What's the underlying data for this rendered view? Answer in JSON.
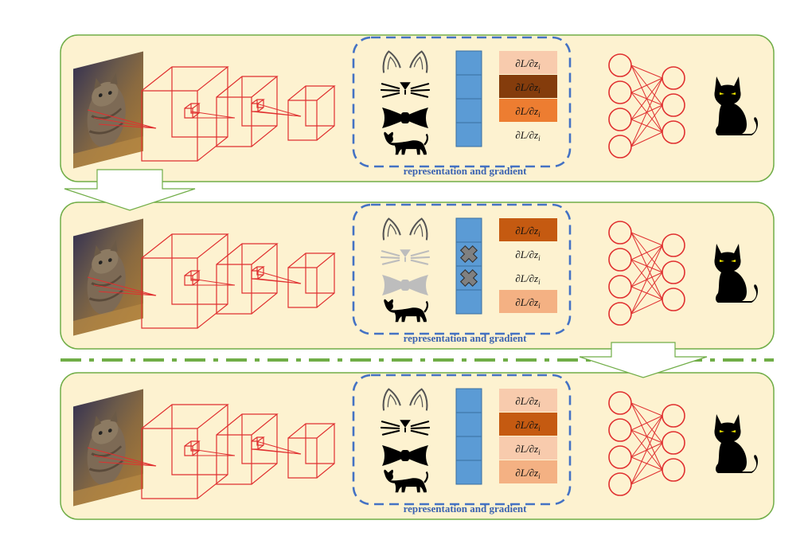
{
  "panels": [
    {
      "id": "panel-top",
      "caption": "representation and gradient",
      "features": [
        "cat-ears",
        "whiskers",
        "bowtie",
        "cat-body"
      ],
      "feature_dimmed": [
        false,
        false,
        false,
        false
      ],
      "feature_dropped": [
        false,
        false,
        false,
        false
      ],
      "gradient_label": "∂L/∂z",
      "gradient_subscript": "i",
      "gradient_colors": [
        "#f8cbad",
        "#843c0c",
        "#ed7d31",
        "#fdf2d0"
      ]
    },
    {
      "id": "panel-middle",
      "caption": "representation and gradient",
      "features": [
        "cat-ears",
        "whiskers",
        "bowtie",
        "cat-body"
      ],
      "feature_dimmed": [
        false,
        true,
        true,
        false
      ],
      "feature_dropped": [
        false,
        true,
        true,
        false
      ],
      "gradient_label": "∂L/∂z",
      "gradient_subscript": "i",
      "gradient_colors": [
        "#c55a11",
        "#fdf2d0",
        "#fdf2d0",
        "#f4b183"
      ]
    },
    {
      "id": "panel-bottom",
      "caption": "representation and gradient",
      "features": [
        "cat-ears",
        "whiskers",
        "bowtie",
        "cat-body"
      ],
      "feature_dimmed": [
        false,
        false,
        false,
        false
      ],
      "feature_dropped": [
        false,
        false,
        false,
        false
      ],
      "gradient_label": "∂L/∂z",
      "gradient_subscript": "i",
      "gradient_colors": [
        "#f8cbad",
        "#c55a11",
        "#f8cbad",
        "#f4b183"
      ]
    }
  ],
  "colors": {
    "panel_fill": "#fdf2d0",
    "panel_border": "#70ad47",
    "network_red": "#e03030",
    "feature_bar": "#5b9bd5",
    "dashed_box": "#4472c4",
    "separator": "#70ad47"
  }
}
